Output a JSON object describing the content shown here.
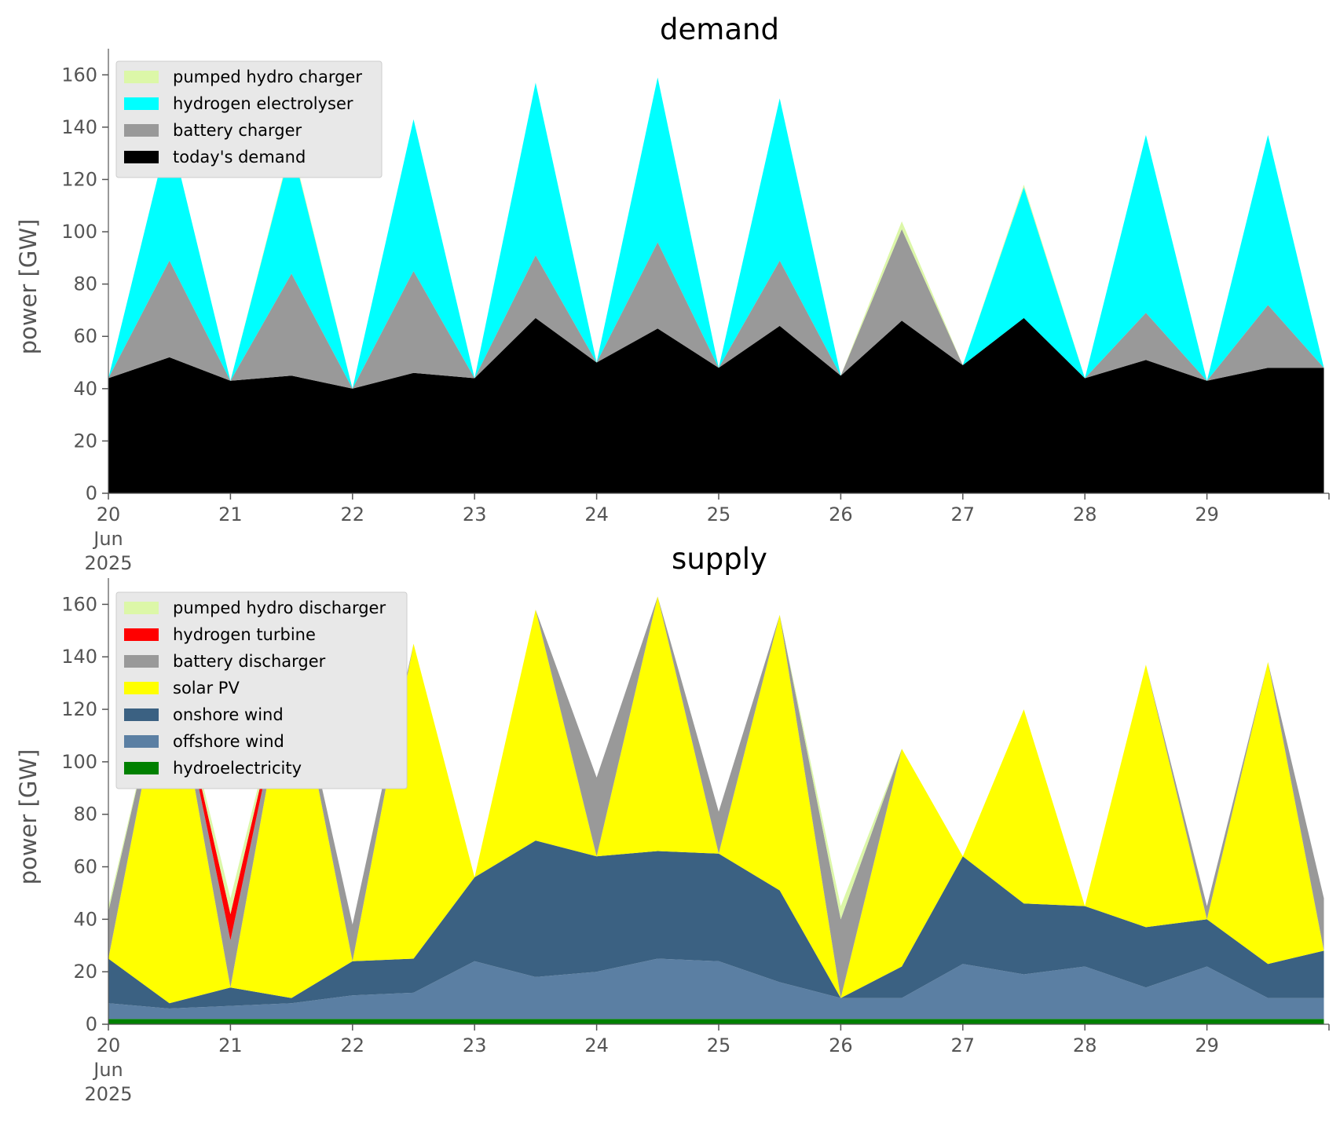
{
  "chart_data": [
    {
      "type": "area",
      "stacked": true,
      "title": "demand",
      "xlabel": "",
      "ylabel": "power [GW]",
      "ylim": [
        0,
        170
      ],
      "xlim_days": [
        "2025-06-20",
        "2025-06-30"
      ],
      "yticks": [
        0,
        20,
        40,
        60,
        80,
        100,
        120,
        140,
        160
      ],
      "xtick_labels": [
        "20",
        "21",
        "22",
        "23",
        "24",
        "25",
        "26",
        "27",
        "28",
        "29"
      ],
      "xtick_sub": [
        "Jun",
        "2025"
      ],
      "grid": false,
      "legend": "top-left",
      "x": [
        "06-20 00:00",
        "06-20 12:00",
        "06-21 00:00",
        "06-21 12:00",
        "06-22 00:00",
        "06-22 12:00",
        "06-23 00:00",
        "06-23 12:00",
        "06-24 00:00",
        "06-24 12:00",
        "06-25 00:00",
        "06-25 12:00",
        "06-26 00:00",
        "06-26 12:00",
        "06-27 00:00",
        "06-27 12:00",
        "06-28 00:00",
        "06-28 12:00",
        "06-29 00:00",
        "06-29 12:00",
        "06-29 23:00"
      ],
      "series": [
        {
          "name": "today's demand",
          "color": "#000000",
          "values": [
            44,
            52,
            43,
            45,
            40,
            46,
            44,
            67,
            50,
            63,
            48,
            64,
            45,
            66,
            49,
            67,
            44,
            51,
            43,
            48,
            48
          ]
        },
        {
          "name": "battery charger",
          "color": "#999999",
          "values": [
            0,
            37,
            0,
            39,
            0,
            39,
            0,
            24,
            0,
            33,
            0,
            25,
            0,
            35,
            0,
            0,
            0,
            18,
            0,
            24,
            0
          ]
        },
        {
          "name": "hydrogen electrolyser",
          "color": "#00ffff",
          "values": [
            0,
            50,
            0,
            49,
            0,
            58,
            0,
            66,
            0,
            63,
            0,
            62,
            0,
            0,
            0,
            50,
            0,
            68,
            0,
            65,
            0
          ]
        },
        {
          "name": "pumped hydro charger",
          "color": "#dcf7a8",
          "values": [
            0,
            0,
            0,
            1,
            0,
            0,
            0,
            0,
            0,
            0,
            0,
            0,
            0,
            3,
            0,
            1,
            0,
            0,
            0,
            0,
            0
          ]
        }
      ]
    },
    {
      "type": "area",
      "stacked": true,
      "title": "supply",
      "xlabel": "",
      "ylabel": "power [GW]",
      "ylim": [
        0,
        170
      ],
      "xlim_days": [
        "2025-06-20",
        "2025-06-30"
      ],
      "yticks": [
        0,
        20,
        40,
        60,
        80,
        100,
        120,
        140,
        160
      ],
      "xtick_labels": [
        "20",
        "21",
        "22",
        "23",
        "24",
        "25",
        "26",
        "27",
        "28",
        "29"
      ],
      "xtick_sub": [
        "Jun",
        "2025"
      ],
      "grid": false,
      "legend": "top-left",
      "x": [
        "06-20 00:00",
        "06-20 12:00",
        "06-21 00:00",
        "06-21 12:00",
        "06-22 00:00",
        "06-22 12:00",
        "06-23 00:00",
        "06-23 12:00",
        "06-24 00:00",
        "06-24 12:00",
        "06-25 00:00",
        "06-25 12:00",
        "06-26 00:00",
        "06-26 12:00",
        "06-27 00:00",
        "06-27 12:00",
        "06-28 00:00",
        "06-28 12:00",
        "06-29 00:00",
        "06-29 12:00",
        "06-29 23:00"
      ],
      "series": [
        {
          "name": "hydroelectricity",
          "color": "#008000",
          "values": [
            2,
            2,
            2,
            2,
            2,
            2,
            2,
            2,
            2,
            2,
            2,
            2,
            2,
            2,
            2,
            2,
            2,
            2,
            2,
            2,
            2
          ]
        },
        {
          "name": "offshore wind",
          "color": "#5b7fa3",
          "values": [
            6,
            4,
            5,
            6,
            9,
            10,
            22,
            16,
            18,
            23,
            22,
            14,
            8,
            8,
            21,
            17,
            20,
            12,
            20,
            8,
            8
          ]
        },
        {
          "name": "onshore wind",
          "color": "#3b6182",
          "values": [
            17,
            2,
            7,
            2,
            13,
            13,
            32,
            52,
            44,
            41,
            41,
            35,
            0,
            12,
            41,
            27,
            23,
            23,
            18,
            13,
            18
          ]
        },
        {
          "name": "solar PV",
          "color": "#ffff00",
          "values": [
            0,
            136,
            0,
            132,
            0,
            120,
            0,
            88,
            0,
            97,
            0,
            105,
            0,
            83,
            0,
            74,
            0,
            100,
            0,
            115,
            0
          ]
        },
        {
          "name": "battery discharger",
          "color": "#999999",
          "values": [
            18,
            0,
            18,
            0,
            14,
            0,
            0,
            0,
            30,
            0,
            16,
            0,
            30,
            0,
            0,
            0,
            0,
            0,
            5,
            0,
            20
          ]
        },
        {
          "name": "hydrogen turbine",
          "color": "#ff0000",
          "values": [
            0,
            0,
            10,
            0,
            0,
            0,
            0,
            0,
            0,
            0,
            0,
            0,
            0,
            0,
            0,
            0,
            0,
            0,
            0,
            0,
            0
          ]
        },
        {
          "name": "pumped hydro discharger",
          "color": "#dcf7a8",
          "values": [
            2,
            0,
            6,
            0,
            0,
            0,
            0,
            0,
            0,
            0,
            0,
            0,
            5,
            0,
            0,
            0,
            0,
            0,
            0,
            0,
            0
          ]
        }
      ]
    }
  ]
}
